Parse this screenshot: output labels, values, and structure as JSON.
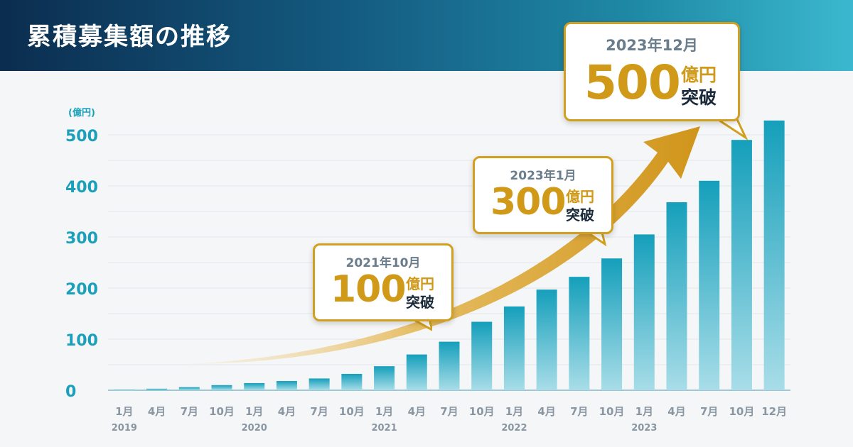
{
  "header": {
    "title": "累積募集額の推移"
  },
  "colors": {
    "header_start": "#0b2d4f",
    "header_end": "#3bb8cf",
    "bar_top": "#1aa3bd",
    "bar_bottom": "#a9dde8",
    "axis_text": "#1ba0bb",
    "accent_gold": "#d09a18",
    "arrow": "#d49b20"
  },
  "callouts": [
    {
      "date": "2021年10月",
      "value": "100",
      "unit": "億円",
      "suffix": "突破"
    },
    {
      "date": "2023年1月",
      "value": "300",
      "unit": "億円",
      "suffix": "突破"
    },
    {
      "date": "2023年12月",
      "value": "500",
      "unit": "億円",
      "suffix": "突破"
    }
  ],
  "chart_data": {
    "type": "bar",
    "ylabel": "(億円)",
    "ylim": [
      0,
      500
    ],
    "yticks": [
      0,
      100,
      200,
      300,
      400,
      500
    ],
    "grid": true,
    "categories": [
      "1月",
      "4月",
      "7月",
      "10月",
      "1月",
      "4月",
      "7月",
      "10月",
      "1月",
      "4月",
      "7月",
      "10月",
      "1月",
      "4月",
      "7月",
      "10月",
      "1月",
      "4月",
      "7月",
      "10月",
      "12月"
    ],
    "years": [
      {
        "label": "2019",
        "index": 0
      },
      {
        "label": "2020",
        "index": 4
      },
      {
        "label": "2021",
        "index": 8
      },
      {
        "label": "2022",
        "index": 12
      },
      {
        "label": "2023",
        "index": 16
      }
    ],
    "values": [
      1,
      3,
      6,
      10,
      14,
      18,
      23,
      32,
      47,
      70,
      95,
      134,
      164,
      197,
      222,
      258,
      305,
      368,
      410,
      490,
      528
    ]
  }
}
